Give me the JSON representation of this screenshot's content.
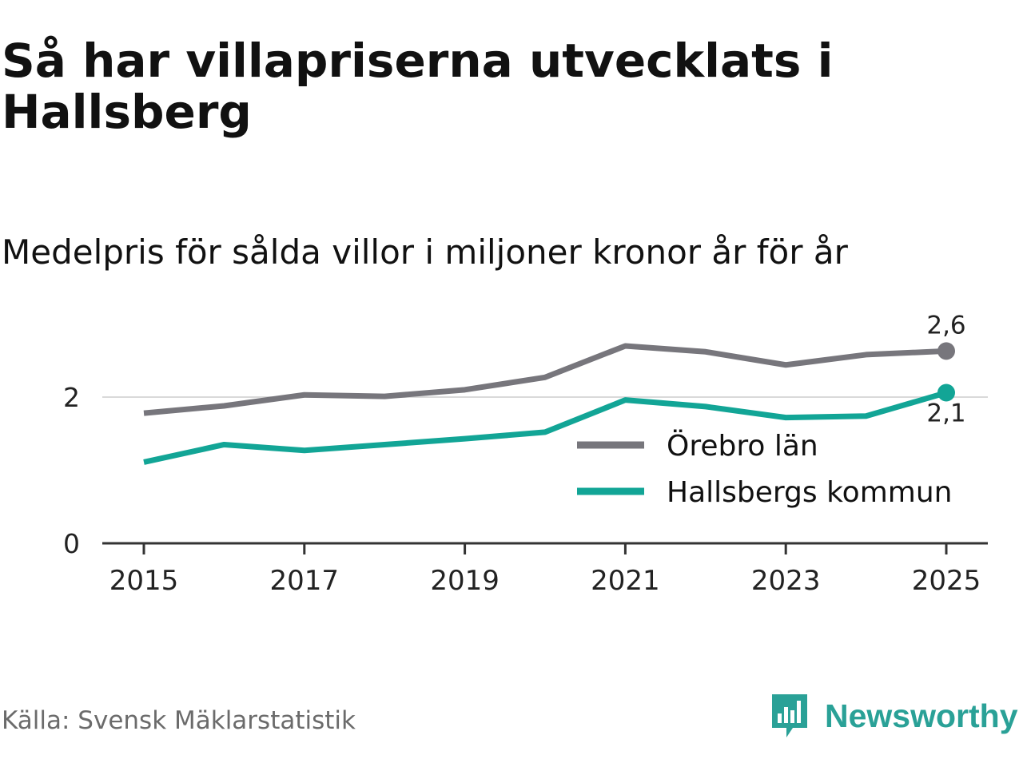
{
  "title": "Så har villapriserna utvecklats i Hallsberg",
  "subtitle": "Medelpris för sålda villor i miljoner kronor år för år",
  "source": "Källa: Svensk Mäklarstatistik",
  "brand": "Newsworthy",
  "colors": {
    "lan": "#77767c",
    "kommun": "#12a596",
    "brand": "#2aa197",
    "grid": "#d9d9d9",
    "axis": "#333333"
  },
  "chart_data": {
    "type": "line",
    "title": "Så har villapriserna utvecklats i Hallsberg",
    "subtitle": "Medelpris för sålda villor i miljoner kronor år för år",
    "xlabel": "",
    "ylabel": "",
    "x": [
      2015,
      2016,
      2017,
      2018,
      2019,
      2020,
      2021,
      2022,
      2023,
      2024,
      2025
    ],
    "x_ticks": [
      "2015",
      "2017",
      "2019",
      "2021",
      "2023",
      "2025"
    ],
    "y_ticks": [
      "0",
      "2"
    ],
    "ylim": [
      0,
      3.1
    ],
    "grid": true,
    "legend_position": "bottom-right",
    "series": [
      {
        "name": "Örebro län",
        "color": "#77767c",
        "values": [
          1.78,
          1.88,
          2.03,
          2.01,
          2.1,
          2.27,
          2.7,
          2.62,
          2.44,
          2.58,
          2.63
        ],
        "end_label": "2,6"
      },
      {
        "name": "Hallsbergs kommun",
        "color": "#12a596",
        "values": [
          1.11,
          1.35,
          1.27,
          1.35,
          1.43,
          1.52,
          1.96,
          1.87,
          1.72,
          1.74,
          2.06
        ],
        "end_label": "2,1"
      }
    ]
  }
}
